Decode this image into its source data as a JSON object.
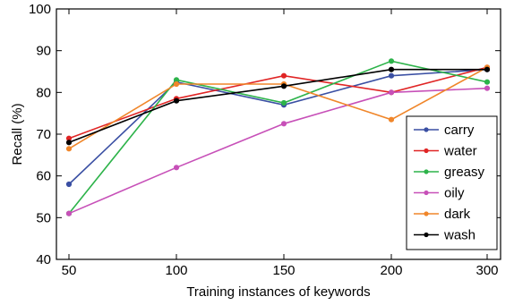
{
  "chart_data": {
    "type": "line",
    "title": "",
    "xlabel": "Training instances of keywords",
    "ylabel": "Recall (%)",
    "categories": [
      "50",
      "100",
      "150",
      "200",
      "300"
    ],
    "ylim": [
      40,
      100
    ],
    "yticks": [
      "40",
      "50",
      "60",
      "70",
      "80",
      "90",
      "100"
    ],
    "grid": false,
    "legend_position": "bottom-right",
    "series": [
      {
        "name": "carry",
        "color": "#3a4fa3",
        "values": [
          58,
          82.5,
          77,
          84,
          85.5
        ]
      },
      {
        "name": "water",
        "color": "#e02525",
        "values": [
          69,
          78.5,
          84,
          80,
          86
        ]
      },
      {
        "name": "greasy",
        "color": "#2db34a",
        "values": [
          51,
          83,
          77.5,
          87.5,
          82.5
        ]
      },
      {
        "name": "oily",
        "color": "#c750b8",
        "values": [
          51,
          62,
          72.5,
          80,
          81
        ]
      },
      {
        "name": "dark",
        "color": "#f0862a",
        "values": [
          66.5,
          82,
          82,
          73.5,
          86
        ]
      },
      {
        "name": "wash",
        "color": "#000000",
        "values": [
          68,
          78,
          81.5,
          85.5,
          85.5
        ]
      }
    ]
  }
}
